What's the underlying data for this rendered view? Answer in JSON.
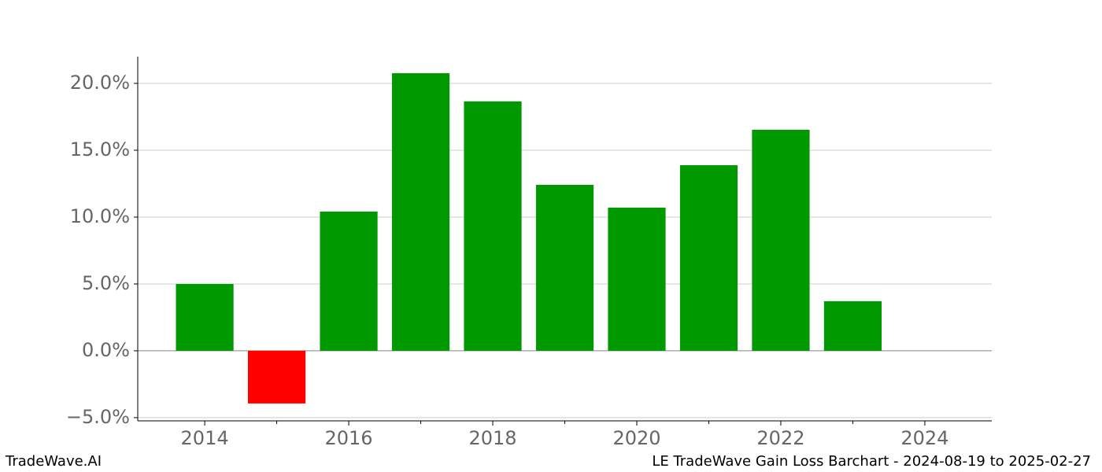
{
  "chart_data": {
    "type": "bar",
    "x": [
      2014,
      2015,
      2016,
      2017,
      2018,
      2019,
      2020,
      2021,
      2022,
      2023
    ],
    "values": [
      5.0,
      -3.94,
      10.41,
      20.76,
      18.65,
      12.41,
      10.71,
      13.88,
      16.53,
      3.71
    ],
    "positive_color": "#009900",
    "negative_color": "#ff0000",
    "xlim": [
      2013.07,
      2024.93
    ],
    "xticks": [
      2014,
      2016,
      2018,
      2020,
      2022,
      2024
    ],
    "xminorticks": [
      2015,
      2017,
      2019,
      2021,
      2023
    ],
    "ylim": [
      -5.24,
      22.0
    ],
    "yticks": [
      {
        "value": -5,
        "label": "−5.0%"
      },
      {
        "value": 0,
        "label": "0.0%"
      },
      {
        "value": 5,
        "label": "5.0%"
      },
      {
        "value": 10,
        "label": "10.0%"
      },
      {
        "value": 15,
        "label": "15.0%"
      },
      {
        "value": 20,
        "label": "20.0%"
      }
    ],
    "grid": true
  },
  "footer": {
    "left": "TradeWave.AI",
    "right": "LE TradeWave Gain Loss Barchart - 2024-08-19 to 2025-02-27"
  }
}
